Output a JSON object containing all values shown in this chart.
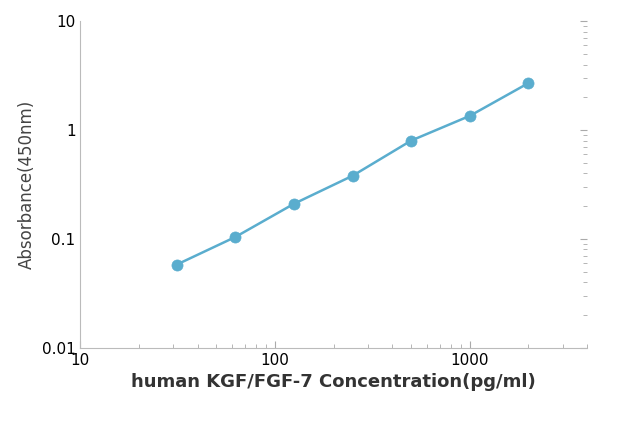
{
  "x": [
    31.25,
    62.5,
    125,
    250,
    500,
    1000,
    2000
  ],
  "y": [
    0.058,
    0.104,
    0.21,
    0.38,
    0.8,
    1.35,
    2.7
  ],
  "line_color": "#5aadce",
  "marker_color": "#5aadce",
  "marker_size": 8,
  "line_width": 1.8,
  "xlabel": "human KGF/FGF-7 Concentration(pg/ml)",
  "ylabel": "Absorbance(450nm)",
  "xlim": [
    10,
    4000
  ],
  "ylim": [
    0.01,
    10
  ],
  "xlabel_fontsize": 13,
  "ylabel_fontsize": 12,
  "tick_fontsize": 11,
  "background_color": "#ffffff",
  "y_tick_labels": [
    "0.01",
    "0.1",
    "1",
    "10"
  ],
  "y_tick_values": [
    0.01,
    0.1,
    1,
    10
  ],
  "x_tick_labels": [
    "10",
    "100",
    "1000"
  ],
  "x_tick_values": [
    10,
    100,
    1000
  ]
}
